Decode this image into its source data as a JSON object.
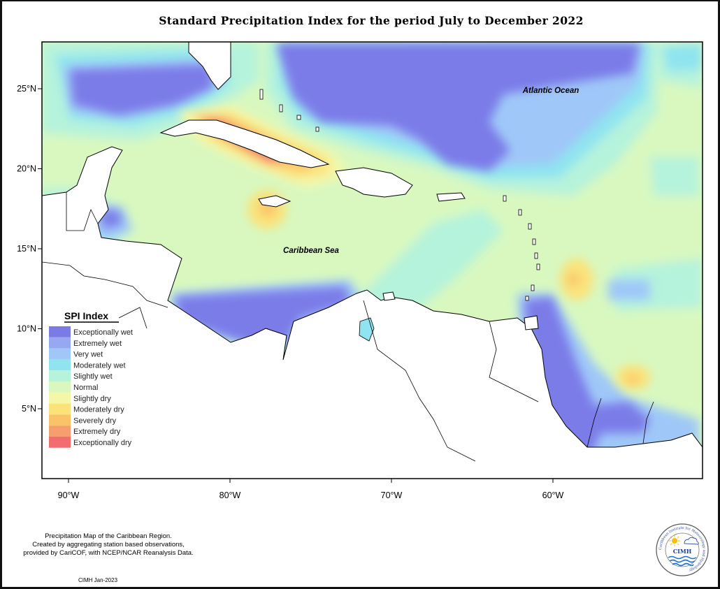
{
  "title": "Standard Precipitation Index for the period July to December 2022",
  "axes": {
    "y_ticks": [
      {
        "label": "25°N",
        "lat": 25
      },
      {
        "label": "20°N",
        "lat": 20
      },
      {
        "label": "15°N",
        "lat": 15
      },
      {
        "label": "10°N",
        "lat": 10
      },
      {
        "label": "5°N",
        "lat": 5
      }
    ],
    "x_ticks": [
      {
        "label": "90°W",
        "lon": -90
      },
      {
        "label": "80°W",
        "lon": -80
      },
      {
        "label": "70°W",
        "lon": -70
      },
      {
        "label": "60°W",
        "lon": -60
      }
    ]
  },
  "labels": {
    "atlantic": "Atlantic Ocean",
    "caribbean": "Caribbean Sea"
  },
  "legend": {
    "title": "SPI Index",
    "items": [
      {
        "label": "Exceptionally wet",
        "color": "#7b7be8"
      },
      {
        "label": "Extremely wet",
        "color": "#96a8f0"
      },
      {
        "label": "Very wet",
        "color": "#9fc8f8"
      },
      {
        "label": "Moderately wet",
        "color": "#8fe4f0"
      },
      {
        "label": "Slightly wet",
        "color": "#b5f3dc"
      },
      {
        "label": "Normal",
        "color": "#d8f8c0"
      },
      {
        "label": "Slightly dry",
        "color": "#f4f7a8"
      },
      {
        "label": "Moderately dry",
        "color": "#fbe37a"
      },
      {
        "label": "Severely dry",
        "color": "#f9c36a"
      },
      {
        "label": "Extremely dry",
        "color": "#f59e6e"
      },
      {
        "label": "Exceptionally dry",
        "color": "#f26e6e"
      }
    ]
  },
  "footer": {
    "line1": "Precipitation Map of the Caribbean Region.",
    "line2": "Created by aggregating station based observations,",
    "line3": "provided by CariCOF, with NCEP/NCAR Reanalysis Data.",
    "credit": "CIMH Jan-2023"
  },
  "logo": {
    "abbr": "CIMH",
    "ring_text": "Caribbean Institute for Meteorology and Hydrology",
    "icons": [
      "sun-icon",
      "cloud-icon",
      "waves-icon"
    ]
  }
}
